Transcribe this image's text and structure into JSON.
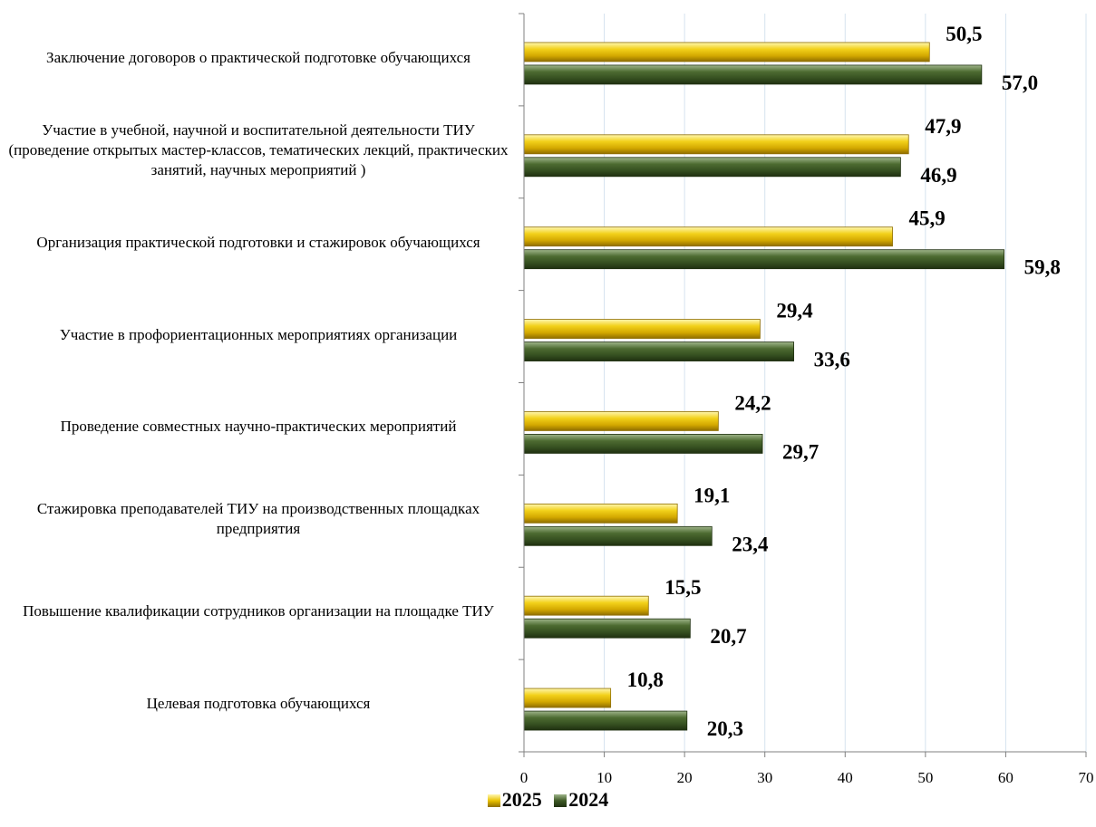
{
  "chart_data": {
    "type": "bar",
    "orientation": "horizontal",
    "categories": [
      "Заключение договоров о практической подготовке обучающихся",
      "Участие в учебной, научной и воспитательной деятельности ТИУ (проведение открытых мастер-классов, тематических лекций, практических занятий, научных мероприятий )",
      "Организация практической подготовки и стажировок обучающихся",
      "Участие в профориентационных мероприятиях организации",
      "Проведение совместных научно-практических мероприятий",
      "Стажировка преподавателей ТИУ на производственных площадках предприятия",
      "Повышение квалификации сотрудников организации на площадке ТИУ",
      "Целевая подготовка обучающихся"
    ],
    "series": [
      {
        "name": "2025",
        "color": "#e8c000",
        "values": [
          50.5,
          47.9,
          45.9,
          29.4,
          24.2,
          19.1,
          15.5,
          10.8
        ],
        "labels": [
          "50,5",
          "47,9",
          "45,9",
          "29,4",
          "24,2",
          "19,1",
          "15,5",
          "10,8"
        ]
      },
      {
        "name": "2024",
        "color": "#3e5a26",
        "values": [
          57.0,
          46.9,
          59.8,
          33.6,
          29.7,
          23.4,
          20.7,
          20.3
        ],
        "labels": [
          "57,0",
          "46,9",
          "59,8",
          "33,6",
          "29,7",
          "23,4",
          "20,7",
          "20,3"
        ]
      }
    ],
    "xlim": [
      0,
      70
    ],
    "xticks": [
      "0",
      "10",
      "20",
      "30",
      "40",
      "50",
      "60",
      "70"
    ],
    "grid": "vertical",
    "legend_position": "bottom"
  }
}
